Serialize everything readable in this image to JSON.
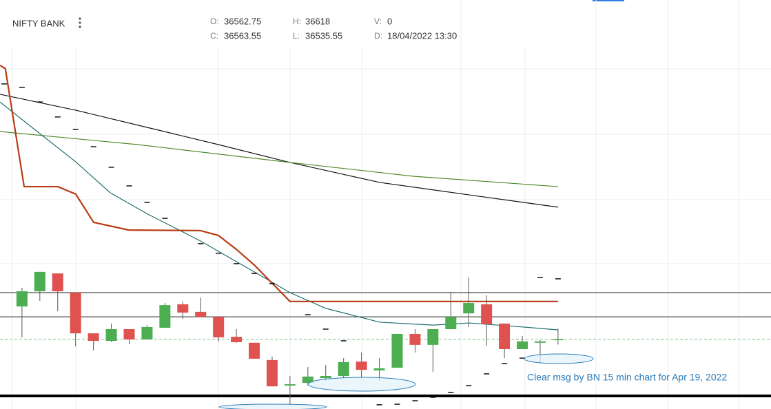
{
  "header": {
    "symbol": "NIFTY BANK",
    "labels": {
      "open": "O:",
      "high": "H:",
      "volume": "V:",
      "close": "C:",
      "low": "L:",
      "date": "D:"
    },
    "volume": 0,
    "date": "18/04/2022 13:30"
  },
  "chart_data": {
    "type": "candlestick",
    "xlim": [
      -1.23,
      41.92
    ],
    "ylim": [
      36200,
      38330
    ],
    "up_color": "#4cae50",
    "down_color": "#e0524f",
    "candles": {
      "open": [
        36734,
        36813,
        36906,
        36806,
        36594,
        36555,
        36616,
        36562,
        36623,
        36745,
        36706,
        36680,
        36576,
        36545,
        36455,
        36322,
        36336,
        36361,
        36372,
        36447,
        36401,
        36415,
        36591,
        36534,
        36616,
        36698,
        36745,
        36645,
        36512,
        36545,
        36562.75
      ],
      "high": [
        36831,
        36914,
        36906,
        36806,
        36594,
        36645,
        36616,
        36637,
        36752,
        36759,
        36781,
        36680,
        36616,
        36545,
        36473,
        36372,
        36419,
        36429,
        36465,
        36494,
        36465,
        36591,
        36616,
        36616,
        36810,
        36885,
        36792,
        36645,
        36580,
        36559,
        36618
      ],
      "low": [
        36573,
        36763,
        36709,
        36526,
        36505,
        36548,
        36537,
        36562,
        36623,
        36670,
        36680,
        36552,
        36545,
        36462,
        36318,
        36221,
        36322,
        36347,
        36361,
        36365,
        36347,
        36415,
        36494,
        36394,
        36616,
        36627,
        36530,
        36465,
        36512,
        36440,
        36535.55
      ],
      "close": [
        36813,
        36914,
        36813,
        36594,
        36555,
        36616,
        36562,
        36627,
        36741,
        36702,
        36680,
        36573,
        36548,
        36462,
        36318,
        36329,
        36369,
        36372,
        36444,
        36404,
        36412,
        36591,
        36534,
        36616,
        36680,
        36752,
        36641,
        36512,
        36552,
        36552,
        36563.55
      ]
    },
    "lines": [
      {
        "color": "#111111",
        "x": [
          -1.23,
          3.01,
          6.98,
          10.99,
          15.0,
          20.02,
          25.03,
          30.0
        ],
        "values": [
          37839,
          37756,
          37667,
          37577,
          37484,
          37380,
          37315,
          37251
        ]
      },
      {
        "color": "#4f8a2a",
        "x": [
          -1.23,
          6.48,
          15.0,
          21.9,
          30.0
        ],
        "values": [
          37645,
          37577,
          37484,
          37412,
          37358
        ]
      },
      {
        "color": "#1f6e6e",
        "x": [
          -1.23,
          0.31,
          3.01,
          4.94,
          6.98,
          9.99,
          13.0,
          15.0,
          17.01,
          20.02,
          23.02,
          25.03,
          28.04,
          30.0
        ],
        "values": [
          37799,
          37685,
          37487,
          37326,
          37218,
          37075,
          36914,
          36806,
          36724,
          36652,
          36637,
          36648,
          36627,
          36612
        ]
      },
      {
        "color": "#b83a14",
        "x": [
          -1.23,
          -0.93,
          0.12,
          2.01,
          3.01,
          4.01,
          5.98,
          9.99,
          10.99,
          11.99,
          13.0,
          15.0,
          30.0
        ],
        "values": [
          37990,
          37972,
          37358,
          37358,
          37319,
          37172,
          37132,
          37129,
          37104,
          37032,
          36950,
          36760,
          36760
        ]
      }
    ],
    "psar": {
      "color": "#111111",
      "x": [
        -1,
        0,
        1,
        2,
        3,
        4,
        5,
        6,
        7,
        8,
        10,
        11,
        12,
        13,
        14,
        16,
        17,
        18,
        20,
        21,
        22,
        23,
        24,
        25,
        26,
        27,
        28,
        29,
        30
      ],
      "values": [
        37893,
        37875,
        37799,
        37721,
        37656,
        37566,
        37459,
        37362,
        37276,
        37193,
        37061,
        37011,
        36957,
        36906,
        36853,
        36691,
        36616,
        36555,
        36222,
        36225,
        36243,
        36261,
        36286,
        36322,
        36383,
        36437,
        36465,
        36885,
        36878
      ]
    },
    "levels": [
      36806,
      36680
    ],
    "base_level": 36268,
    "annotation": "Clear msg by BN 15 min chart for Apr 19, 2022"
  }
}
